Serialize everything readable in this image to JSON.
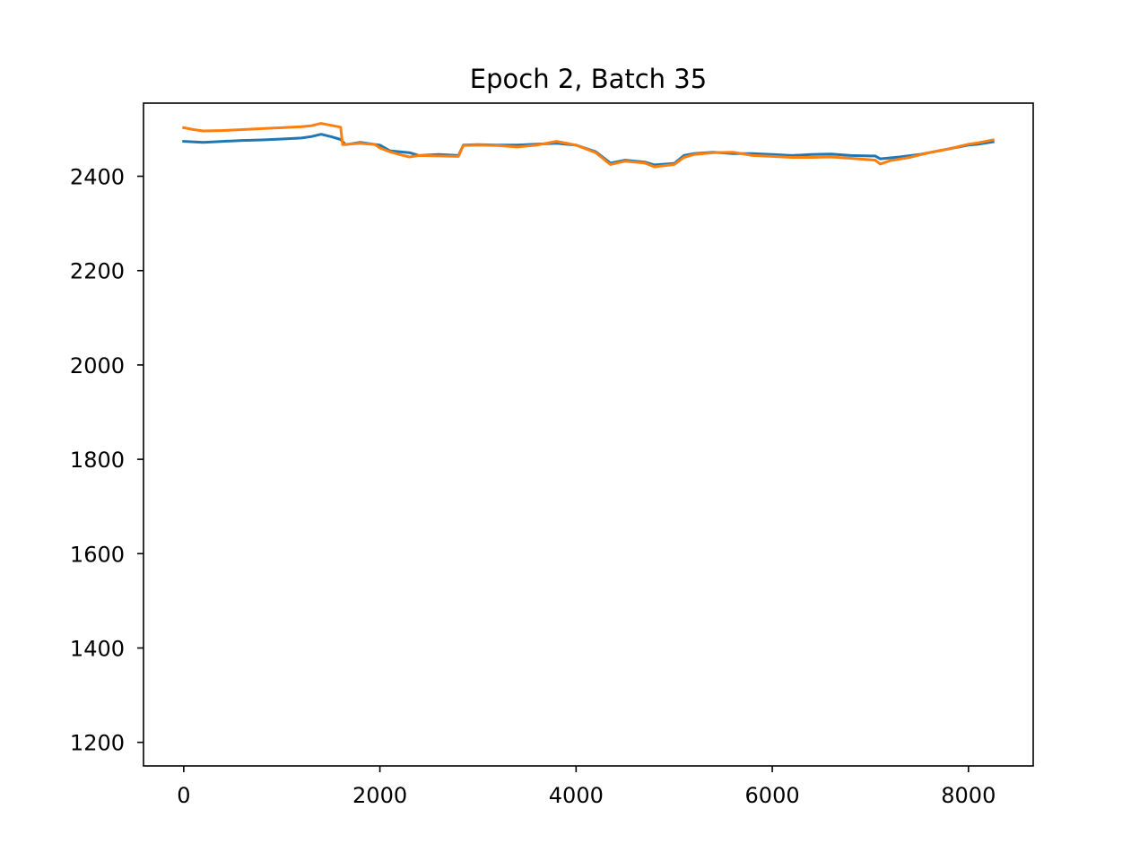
{
  "chart_data": {
    "type": "line",
    "title": "Epoch 2, Batch 35",
    "xlabel": "",
    "ylabel": "",
    "xlim": [
      -410,
      8660
    ],
    "ylim": [
      1150,
      2555
    ],
    "grid": false,
    "legend": "none",
    "x_ticks": [
      0,
      2000,
      4000,
      6000,
      8000
    ],
    "x_tick_labels": [
      "0",
      "2000",
      "4000",
      "6000",
      "8000"
    ],
    "y_ticks": [
      1200,
      1400,
      1600,
      1800,
      2000,
      2200,
      2400
    ],
    "y_tick_labels": [
      "1200",
      "1400",
      "1600",
      "1800",
      "2000",
      "2200",
      "2400"
    ],
    "series": [
      {
        "color": "#1f77b4",
        "x": [
          0,
          200,
          400,
          600,
          800,
          1000,
          1200,
          1300,
          1400,
          1500,
          1600,
          1650,
          1800,
          2000,
          2100,
          2300,
          2400,
          2600,
          2800,
          2850,
          3000,
          3200,
          3400,
          3600,
          3800,
          4000,
          4200,
          4350,
          4500,
          4700,
          4800,
          5000,
          5100,
          5200,
          5400,
          5600,
          5800,
          6000,
          6200,
          6400,
          6600,
          6800,
          7000,
          7050,
          7100,
          7300,
          7500,
          7700,
          7900,
          8000,
          8100,
          8250
        ],
        "y": [
          2474,
          2472,
          2474,
          2476,
          2477,
          2479,
          2481,
          2484,
          2489,
          2484,
          2478,
          2467,
          2472,
          2466,
          2454,
          2450,
          2444,
          2446,
          2444,
          2466,
          2467,
          2466,
          2466,
          2468,
          2470,
          2466,
          2452,
          2428,
          2434,
          2430,
          2424,
          2427,
          2444,
          2448,
          2451,
          2448,
          2448,
          2446,
          2444,
          2446,
          2447,
          2444,
          2443,
          2443,
          2437,
          2441,
          2446,
          2454,
          2462,
          2466,
          2468,
          2473
        ]
      },
      {
        "color": "#ff7f0e",
        "x": [
          0,
          100,
          200,
          400,
          600,
          800,
          1000,
          1200,
          1300,
          1400,
          1500,
          1600,
          1620,
          1800,
          1950,
          2000,
          2100,
          2200,
          2300,
          2400,
          2600,
          2800,
          2850,
          3000,
          3200,
          3400,
          3600,
          3800,
          4000,
          4200,
          4350,
          4500,
          4700,
          4800,
          5000,
          5100,
          5200,
          5400,
          5600,
          5800,
          6000,
          6200,
          6400,
          6600,
          6800,
          7000,
          7050,
          7100,
          7200,
          7400,
          7600,
          7800,
          8000,
          8100,
          8250
        ],
        "y": [
          2503,
          2499,
          2496,
          2497,
          2499,
          2501,
          2503,
          2505,
          2507,
          2512,
          2508,
          2504,
          2467,
          2470,
          2467,
          2460,
          2452,
          2446,
          2441,
          2444,
          2443,
          2442,
          2465,
          2466,
          2465,
          2462,
          2466,
          2474,
          2466,
          2450,
          2425,
          2432,
          2428,
          2420,
          2425,
          2440,
          2446,
          2450,
          2451,
          2444,
          2442,
          2440,
          2440,
          2441,
          2438,
          2435,
          2434,
          2426,
          2433,
          2440,
          2450,
          2458,
          2468,
          2471,
          2477
        ]
      }
    ]
  }
}
